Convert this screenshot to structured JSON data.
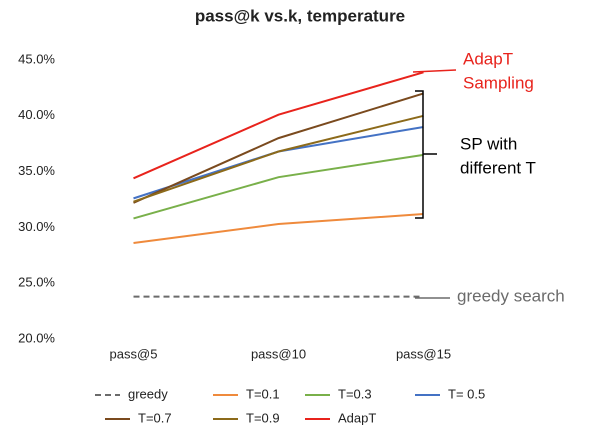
{
  "chart_data": {
    "type": "line",
    "title": "pass@k vs.k, temperature",
    "categories": [
      "pass@5",
      "pass@10",
      "pass@15"
    ],
    "series": [
      {
        "name": "greedy",
        "color": "#6b6b6b",
        "style": "dashed",
        "values": [
          23.8,
          23.8,
          23.8
        ]
      },
      {
        "name": "T=0.1",
        "color": "#ef8a3c",
        "values": [
          28.6,
          30.3,
          31.2
        ]
      },
      {
        "name": "T=0.3",
        "color": "#79b04a",
        "values": [
          30.8,
          34.5,
          36.5
        ]
      },
      {
        "name": "T= 0.5",
        "color": "#4472c4",
        "values": [
          32.6,
          36.8,
          39.0
        ]
      },
      {
        "name": "T=0.7",
        "color": "#7a4a1e",
        "values": [
          32.2,
          38.0,
          42.0
        ]
      },
      {
        "name": "T=0.9",
        "color": "#8c6a1a",
        "values": [
          32.3,
          36.8,
          40.0
        ]
      },
      {
        "name": "AdapT",
        "color": "#e8231c",
        "values": [
          34.4,
          40.1,
          43.9
        ]
      }
    ],
    "ylim": [
      20,
      45
    ],
    "yticks": [
      {
        "value": 20,
        "label": "20.0%"
      },
      {
        "value": 25,
        "label": "25.0%"
      },
      {
        "value": 30,
        "label": "30.0%"
      },
      {
        "value": 35,
        "label": "35.0%"
      },
      {
        "value": 40,
        "label": "40.0%"
      },
      {
        "value": 45,
        "label": "45.0%"
      }
    ],
    "grid": false,
    "legend": "bottom",
    "annotations": [
      {
        "lines": [
          "AdapT",
          "Sampling"
        ],
        "color": "#e8231c"
      },
      {
        "lines": [
          "SP with",
          "different T"
        ],
        "color": "#000000"
      },
      {
        "lines": [
          "greedy search"
        ],
        "color": "#6b6b6b"
      }
    ]
  }
}
